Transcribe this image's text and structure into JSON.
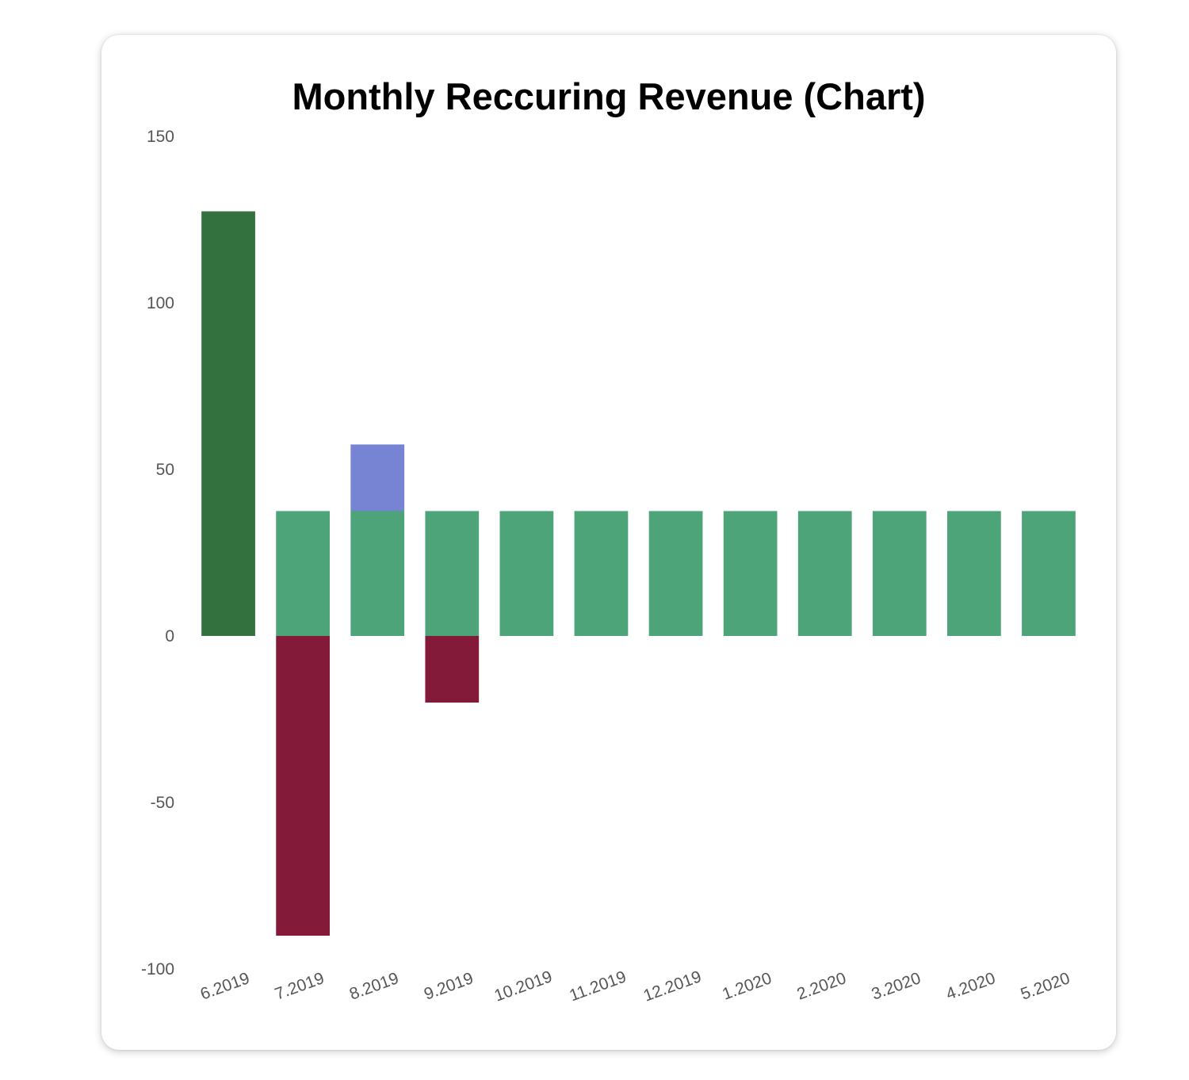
{
  "chart_data": {
    "type": "bar",
    "title": "Monthly Reccuring Revenue (Chart)",
    "xlabel": "",
    "ylabel": "",
    "ylim": [
      -100,
      150
    ],
    "yticks": [
      "150",
      "100",
      "50",
      "0",
      "-50",
      "-100"
    ],
    "ytick_values": [
      150,
      100,
      50,
      0,
      -50,
      -100
    ],
    "stacked": true,
    "grid": false,
    "legend": "none",
    "categories": [
      "6.2019",
      "7.2019",
      "8.2019",
      "9.2019",
      "10.2019",
      "11.2019",
      "12.2019",
      "1.2020",
      "2.2020",
      "3.2020",
      "4.2020",
      "5.2020"
    ],
    "series": [
      {
        "color": "#33713f",
        "values": [
          127.5,
          0,
          0,
          0,
          0,
          0,
          0,
          0,
          0,
          0,
          0,
          0
        ]
      },
      {
        "color": "#4da478",
        "values": [
          0,
          37.5,
          37.5,
          37.5,
          37.5,
          37.5,
          37.5,
          37.5,
          37.5,
          37.5,
          37.5,
          37.5
        ]
      },
      {
        "color": "#7783d3",
        "values": [
          0,
          0,
          20,
          0,
          0,
          0,
          0,
          0,
          0,
          0,
          0,
          0
        ]
      },
      {
        "color": "#841a39",
        "values": [
          0,
          -90,
          0,
          -20,
          0,
          0,
          0,
          0,
          0,
          0,
          0,
          0
        ]
      }
    ]
  }
}
